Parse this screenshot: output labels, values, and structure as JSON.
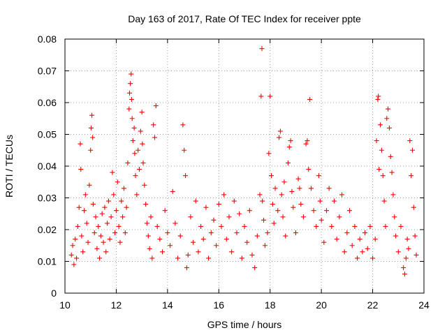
{
  "chart_data": {
    "type": "scatter",
    "title": "Day 163 of 2017, Rate Of TEC Index for receiver ppte",
    "xlabel": "GPS time / hours",
    "ylabel": "ROTI / TECUs",
    "xlim": [
      10,
      24
    ],
    "ylim": [
      0,
      0.08
    ],
    "xticks": [
      10,
      12,
      14,
      16,
      18,
      20,
      22,
      24
    ],
    "xtick_labels": [
      "10",
      "12",
      "14",
      "16",
      "18",
      "20",
      "22",
      "24"
    ],
    "yticks": [
      0,
      0.01,
      0.02,
      0.03,
      0.04,
      0.05,
      0.06,
      0.07,
      0.08
    ],
    "ytick_labels": [
      "0",
      "0.01",
      "0.02",
      "0.03",
      "0.04",
      "0.05",
      "0.06",
      "0.07",
      "0.08"
    ],
    "grid": true,
    "marker": "plus",
    "color": "#ff0000",
    "series": [
      {
        "name": "ROTI",
        "points": [
          [
            10.25,
            0.012
          ],
          [
            10.3,
            0.015
          ],
          [
            10.35,
            0.009
          ],
          [
            10.4,
            0.017
          ],
          [
            10.45,
            0.011
          ],
          [
            10.5,
            0.021
          ],
          [
            10.55,
            0.027
          ],
          [
            10.6,
            0.047
          ],
          [
            10.62,
            0.039
          ],
          [
            10.65,
            0.018
          ],
          [
            10.7,
            0.013
          ],
          [
            10.75,
            0.026
          ],
          [
            10.8,
            0.031
          ],
          [
            10.85,
            0.022
          ],
          [
            10.9,
            0.016
          ],
          [
            10.95,
            0.034
          ],
          [
            11.0,
            0.045
          ],
          [
            11.02,
            0.052
          ],
          [
            11.05,
            0.056
          ],
          [
            11.08,
            0.049
          ],
          [
            11.1,
            0.028
          ],
          [
            11.15,
            0.019
          ],
          [
            11.2,
            0.024
          ],
          [
            11.25,
            0.014
          ],
          [
            11.3,
            0.021
          ],
          [
            11.35,
            0.011
          ],
          [
            11.4,
            0.018
          ],
          [
            11.45,
            0.025
          ],
          [
            11.5,
            0.016
          ],
          [
            11.55,
            0.027
          ],
          [
            11.6,
            0.013
          ],
          [
            11.65,
            0.022
          ],
          [
            11.7,
            0.029
          ],
          [
            11.75,
            0.017
          ],
          [
            11.8,
            0.024
          ],
          [
            11.85,
            0.038
          ],
          [
            11.9,
            0.031
          ],
          [
            11.95,
            0.019
          ],
          [
            12.0,
            0.026
          ],
          [
            12.05,
            0.035
          ],
          [
            12.1,
            0.021
          ],
          [
            12.15,
            0.016
          ],
          [
            12.2,
            0.029
          ],
          [
            12.25,
            0.024
          ],
          [
            12.3,
            0.033
          ],
          [
            12.35,
            0.019
          ],
          [
            12.4,
            0.027
          ],
          [
            12.45,
            0.041
          ],
          [
            12.5,
            0.058
          ],
          [
            12.52,
            0.063
          ],
          [
            12.55,
            0.066
          ],
          [
            12.58,
            0.069
          ],
          [
            12.6,
            0.061
          ],
          [
            12.62,
            0.055
          ],
          [
            12.65,
            0.048
          ],
          [
            12.7,
            0.052
          ],
          [
            12.72,
            0.044
          ],
          [
            12.75,
            0.037
          ],
          [
            12.8,
            0.031
          ],
          [
            12.85,
            0.045
          ],
          [
            12.9,
            0.039
          ],
          [
            12.95,
            0.051
          ],
          [
            13.0,
            0.057
          ],
          [
            13.02,
            0.047
          ],
          [
            13.05,
            0.041
          ],
          [
            13.1,
            0.034
          ],
          [
            13.15,
            0.028
          ],
          [
            13.2,
            0.022
          ],
          [
            13.25,
            0.018
          ],
          [
            13.3,
            0.014
          ],
          [
            13.35,
            0.024
          ],
          [
            13.4,
            0.011
          ],
          [
            13.45,
            0.053
          ],
          [
            13.5,
            0.049
          ],
          [
            13.55,
            0.059
          ],
          [
            13.6,
            0.021
          ],
          [
            13.7,
            0.017
          ],
          [
            13.8,
            0.013
          ],
          [
            13.9,
            0.026
          ],
          [
            14.0,
            0.019
          ],
          [
            14.1,
            0.015
          ],
          [
            14.2,
            0.032
          ],
          [
            14.3,
            0.022
          ],
          [
            14.4,
            0.011
          ],
          [
            14.5,
            0.018
          ],
          [
            14.6,
            0.053
          ],
          [
            14.65,
            0.045
          ],
          [
            14.7,
            0.037
          ],
          [
            14.75,
            0.008
          ],
          [
            14.8,
            0.012
          ],
          [
            14.9,
            0.024
          ],
          [
            15.0,
            0.016
          ],
          [
            15.1,
            0.029
          ],
          [
            15.2,
            0.013
          ],
          [
            15.3,
            0.021
          ],
          [
            15.4,
            0.017
          ],
          [
            15.5,
            0.027
          ],
          [
            15.6,
            0.011
          ],
          [
            15.7,
            0.019
          ],
          [
            15.8,
            0.023
          ],
          [
            15.9,
            0.015
          ],
          [
            16.0,
            0.028
          ],
          [
            16.1,
            0.021
          ],
          [
            16.2,
            0.031
          ],
          [
            16.3,
            0.017
          ],
          [
            16.4,
            0.024
          ],
          [
            16.5,
            0.013
          ],
          [
            16.6,
            0.029
          ],
          [
            16.7,
            0.019
          ],
          [
            16.8,
            0.025
          ],
          [
            16.9,
            0.011
          ],
          [
            17.0,
            0.021
          ],
          [
            17.1,
            0.016
          ],
          [
            17.2,
            0.026
          ],
          [
            17.3,
            0.012
          ],
          [
            17.4,
            0.008
          ],
          [
            17.5,
            0.018
          ],
          [
            17.6,
            0.031
          ],
          [
            17.65,
            0.062
          ],
          [
            17.68,
            0.077
          ],
          [
            17.7,
            0.029
          ],
          [
            17.75,
            0.023
          ],
          [
            17.8,
            0.015
          ],
          [
            17.9,
            0.019
          ],
          [
            17.95,
            0.044
          ],
          [
            18.0,
            0.062
          ],
          [
            18.05,
            0.037
          ],
          [
            18.1,
            0.028
          ],
          [
            18.15,
            0.022
          ],
          [
            18.2,
            0.033
          ],
          [
            18.3,
            0.026
          ],
          [
            18.35,
            0.049
          ],
          [
            18.4,
            0.051
          ],
          [
            18.45,
            0.031
          ],
          [
            18.5,
            0.024
          ],
          [
            18.55,
            0.035
          ],
          [
            18.6,
            0.018
          ],
          [
            18.7,
            0.041
          ],
          [
            18.75,
            0.046
          ],
          [
            18.8,
            0.048
          ],
          [
            18.85,
            0.032
          ],
          [
            18.9,
            0.027
          ],
          [
            19.0,
            0.019
          ],
          [
            19.1,
            0.036
          ],
          [
            19.15,
            0.033
          ],
          [
            19.2,
            0.028
          ],
          [
            19.3,
            0.024
          ],
          [
            19.4,
            0.047
          ],
          [
            19.45,
            0.048
          ],
          [
            19.5,
            0.039
          ],
          [
            19.55,
            0.061
          ],
          [
            19.6,
            0.033
          ],
          [
            19.7,
            0.026
          ],
          [
            19.8,
            0.021
          ],
          [
            19.9,
            0.037
          ],
          [
            19.95,
            0.029
          ],
          [
            20.0,
            0.023
          ],
          [
            20.1,
            0.016
          ],
          [
            20.2,
            0.026
          ],
          [
            20.3,
            0.033
          ],
          [
            20.4,
            0.021
          ],
          [
            20.5,
            0.029
          ],
          [
            20.6,
            0.017
          ],
          [
            20.7,
            0.024
          ],
          [
            20.8,
            0.031
          ],
          [
            20.9,
            0.013
          ],
          [
            21.0,
            0.019
          ],
          [
            21.1,
            0.026
          ],
          [
            21.2,
            0.015
          ],
          [
            21.3,
            0.021
          ],
          [
            21.4,
            0.011
          ],
          [
            21.5,
            0.017
          ],
          [
            21.6,
            0.013
          ],
          [
            21.7,
            0.019
          ],
          [
            21.8,
            0.014
          ],
          [
            21.9,
            0.021
          ],
          [
            22.0,
            0.011
          ],
          [
            22.1,
            0.017
          ],
          [
            22.15,
            0.048
          ],
          [
            22.2,
            0.061
          ],
          [
            22.22,
            0.062
          ],
          [
            22.25,
            0.039
          ],
          [
            22.3,
            0.053
          ],
          [
            22.35,
            0.045
          ],
          [
            22.4,
            0.037
          ],
          [
            22.45,
            0.029
          ],
          [
            22.5,
            0.021
          ],
          [
            22.55,
            0.055
          ],
          [
            22.6,
            0.058
          ],
          [
            22.65,
            0.052
          ],
          [
            22.7,
            0.043
          ],
          [
            22.75,
            0.038
          ],
          [
            22.8,
            0.031
          ],
          [
            22.85,
            0.024
          ],
          [
            22.9,
            0.018
          ],
          [
            23.0,
            0.013
          ],
          [
            23.1,
            0.021
          ],
          [
            23.2,
            0.008
          ],
          [
            23.25,
            0.006
          ],
          [
            23.3,
            0.011
          ],
          [
            23.35,
            0.017
          ],
          [
            23.4,
            0.014
          ],
          [
            23.45,
            0.048
          ],
          [
            23.5,
            0.037
          ],
          [
            23.55,
            0.045
          ],
          [
            23.6,
            0.027
          ],
          [
            23.65,
            0.018
          ],
          [
            23.7,
            0.012
          ]
        ]
      }
    ]
  }
}
